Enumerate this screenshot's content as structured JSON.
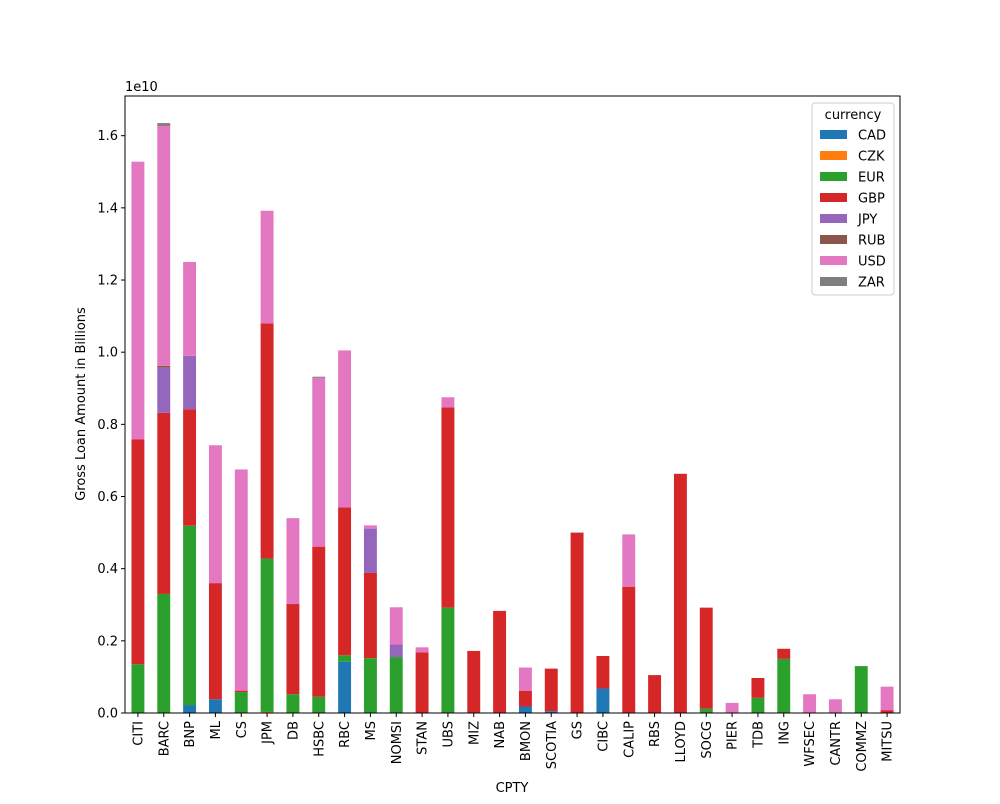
{
  "chart_data": {
    "type": "bar",
    "stacked": true,
    "title": "",
    "xlabel": "CPTY",
    "ylabel": "Gross Loan Amount in Billions",
    "offset_label": "1e10",
    "ylim": [
      0,
      1.71
    ],
    "yticks": [
      0.0,
      0.2,
      0.4,
      0.6,
      0.8,
      1.0,
      1.2,
      1.4,
      1.6
    ],
    "ytick_labels": [
      "0.0",
      "0.2",
      "0.4",
      "0.6",
      "0.8",
      "1.0",
      "1.2",
      "1.4",
      "1.6"
    ],
    "legend_title": "currency",
    "legend_position": "top-right",
    "categories": [
      "CITI",
      "BARC",
      "BNP",
      "ML",
      "CS",
      "JPM",
      "DB",
      "HSBC",
      "RBC",
      "MS",
      "NOMSI",
      "STAN",
      "UBS",
      "MIZ",
      "NAB",
      "BMON",
      "SCOTIA",
      "GS",
      "CIBC",
      "CALIP",
      "RBS",
      "LLOYD",
      "SOCG",
      "PIER",
      "TDB",
      "ING",
      "WFSEC",
      "CANTR",
      "COMMZ",
      "MITSU"
    ],
    "series": [
      {
        "name": "CAD",
        "color": "#1f77b4",
        "values": [
          0,
          0,
          0.022,
          0.038,
          0,
          0,
          0,
          0,
          0.142,
          0,
          0,
          0,
          0,
          0,
          0,
          0.018,
          0.005,
          0,
          0.068,
          0,
          0,
          0,
          0,
          0,
          0,
          0,
          0,
          0,
          0,
          0
        ]
      },
      {
        "name": "CZK",
        "color": "#ff7f0e",
        "values": [
          0,
          0,
          0,
          0,
          0,
          0.003,
          0,
          0,
          0,
          0,
          0,
          0,
          0,
          0,
          0,
          0,
          0,
          0,
          0,
          0,
          0,
          0,
          0,
          0,
          0,
          0,
          0,
          0,
          0,
          0
        ]
      },
      {
        "name": "EUR",
        "color": "#2ca02c",
        "values": [
          0.135,
          0.33,
          0.497,
          0,
          0.058,
          0.425,
          0.052,
          0.045,
          0.018,
          0.152,
          0.155,
          0,
          0.292,
          0,
          0,
          0,
          0,
          0,
          0,
          0,
          0,
          0,
          0.012,
          0,
          0.042,
          0.15,
          0,
          0,
          0.13,
          0
        ]
      },
      {
        "name": "GBP",
        "color": "#d62728",
        "values": [
          0.623,
          0.502,
          0.323,
          0.322,
          0.004,
          0.652,
          0.25,
          0.416,
          0.41,
          0.237,
          0,
          0.168,
          0.555,
          0.172,
          0.283,
          0.043,
          0.118,
          0.5,
          0.09,
          0.35,
          0.105,
          0.663,
          0.28,
          0,
          0.055,
          0.028,
          0,
          0,
          0,
          0.008
        ]
      },
      {
        "name": "JPY",
        "color": "#9467bd",
        "values": [
          0,
          0.125,
          0.148,
          0,
          0,
          0,
          0,
          0,
          0,
          0.122,
          0.035,
          0,
          0,
          0,
          0,
          0,
          0,
          0,
          0,
          0,
          0,
          0,
          0,
          0,
          0,
          0,
          0,
          0,
          0,
          0
        ]
      },
      {
        "name": "RUB",
        "color": "#8c564b",
        "values": [
          0,
          0.005,
          0,
          0,
          0,
          0,
          0,
          0,
          0,
          0,
          0,
          0,
          0,
          0,
          0,
          0,
          0,
          0,
          0,
          0,
          0,
          0,
          0,
          0,
          0,
          0,
          0,
          0,
          0,
          0
        ]
      },
      {
        "name": "USD",
        "color": "#e377c2",
        "values": [
          0.77,
          0.665,
          0.26,
          0.382,
          0.613,
          0.312,
          0.238,
          0.468,
          0.435,
          0.009,
          0.103,
          0.014,
          0.028,
          0,
          0,
          0.065,
          0,
          0,
          0,
          0.145,
          0,
          0,
          0,
          0.028,
          0,
          0,
          0.052,
          0.038,
          0,
          0.065
        ]
      },
      {
        "name": "ZAR",
        "color": "#7f7f7f",
        "values": [
          0,
          0.008,
          0,
          0,
          0,
          0,
          0,
          0.003,
          0,
          0,
          0,
          0,
          0,
          0,
          0,
          0,
          0,
          0,
          0,
          0,
          0,
          0,
          0,
          0,
          0,
          0,
          0,
          0,
          0,
          0
        ]
      }
    ]
  }
}
